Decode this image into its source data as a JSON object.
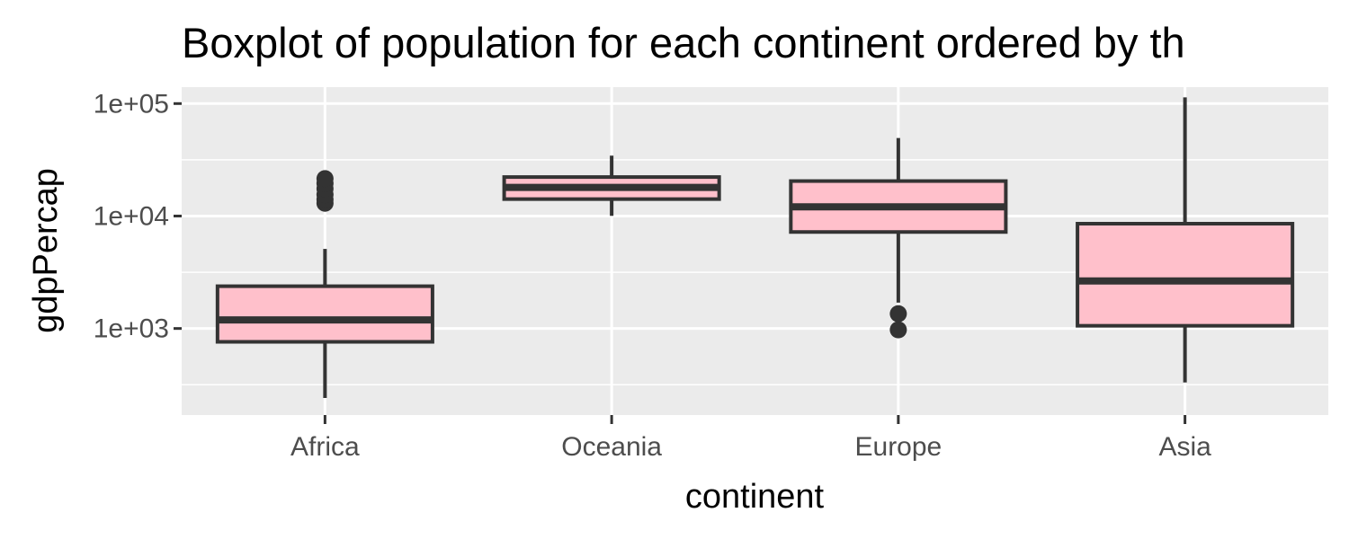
{
  "chart_data": {
    "type": "boxplot",
    "title": "Boxplot of population for each continent ordered by th",
    "xlabel": "continent",
    "ylabel": "gdpPercap",
    "y_scale": "log10",
    "ylim": [
      170,
      140000
    ],
    "y_ticks": [
      {
        "value": 1000,
        "label": "1e+03"
      },
      {
        "value": 10000,
        "label": "1e+04"
      },
      {
        "value": 100000,
        "label": "1e+05"
      }
    ],
    "categories": [
      "Africa",
      "Oceania",
      "Europe",
      "Asia"
    ],
    "boxes": [
      {
        "name": "Africa",
        "whisker_low": 241,
        "q1": 761,
        "median": 1192,
        "q3": 2377,
        "whisker_high": 5100,
        "outliers": [
          13000,
          14000,
          15500,
          17500,
          19500,
          21500
        ]
      },
      {
        "name": "Oceania",
        "whisker_low": 10040,
        "q1": 14142,
        "median": 17983,
        "q3": 22214,
        "whisker_high": 34435,
        "outliers": []
      },
      {
        "name": "Europe",
        "whisker_low": 1700,
        "q1": 7213,
        "median": 12082,
        "q3": 20461,
        "whisker_high": 49357,
        "outliers": [
          974,
          1353
        ]
      },
      {
        "name": "Asia",
        "whisker_low": 331,
        "q1": 1057,
        "median": 2647,
        "q3": 8549,
        "whisker_high": 113523,
        "outliers": []
      }
    ],
    "colors": {
      "box_fill": "#ffc0cb",
      "box_line": "#333333",
      "panel_bg": "#ebebeb",
      "grid": "#ffffff",
      "tick_label": "#4d4d4d"
    },
    "grid": true,
    "legend": "none"
  }
}
